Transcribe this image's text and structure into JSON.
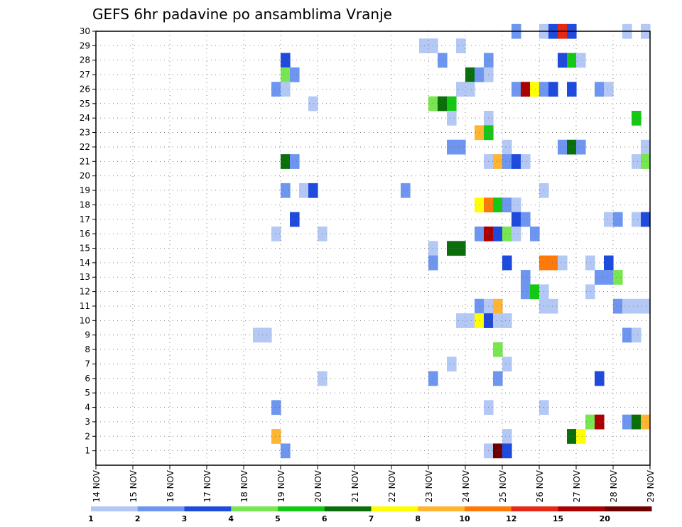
{
  "chart_data": {
    "type": "heatmap",
    "title": "GEFS 6hr padavine po ansamblima Vranje",
    "x_tick_labels": [
      "14 NOV",
      "15 NOV",
      "16 NOV",
      "17 NOV",
      "18 NOV",
      "19 NOV",
      "20 NOV",
      "21 NOV",
      "22 NOV",
      "23 NOV",
      "24 NOV",
      "25 NOV",
      "26 NOV",
      "27 NOV",
      "28 NOV",
      "29 NOV"
    ],
    "x_range_days": [
      14,
      29
    ],
    "y_tick_labels": [
      "1",
      "2",
      "3",
      "4",
      "5",
      "6",
      "7",
      "8",
      "9",
      "10",
      "11",
      "12",
      "13",
      "14",
      "15",
      "16",
      "17",
      "18",
      "19",
      "20",
      "21",
      "22",
      "23",
      "24",
      "25",
      "26",
      "27",
      "28",
      "29",
      "30"
    ],
    "y_range": [
      0,
      30
    ],
    "grid": true,
    "colorbar": {
      "position": "bottom",
      "labels": [
        "1",
        "2",
        "3",
        "4",
        "5",
        "6",
        "7",
        "8",
        "10",
        "12",
        "15",
        "20"
      ],
      "colors": [
        "#b4c8f5",
        "#6e96f0",
        "#1e4bdc",
        "#78e650",
        "#14c814",
        "#0a6e0a",
        "#ffff00",
        "#ffb432",
        "#ff780a",
        "#e62814",
        "#aa0000",
        "#6e0000"
      ]
    },
    "cells": [
      {
        "member": 30,
        "day": 25.25,
        "level": 1
      },
      {
        "member": 30,
        "day": 26.0,
        "level": 0
      },
      {
        "member": 30,
        "day": 26.25,
        "level": 2
      },
      {
        "member": 30,
        "day": 26.5,
        "level": 9
      },
      {
        "member": 30,
        "day": 26.75,
        "level": 2
      },
      {
        "member": 30,
        "day": 28.25,
        "level": 0
      },
      {
        "member": 30,
        "day": 28.75,
        "level": 0
      },
      {
        "member": 29,
        "day": 22.75,
        "level": 0
      },
      {
        "member": 29,
        "day": 23.0,
        "level": 0
      },
      {
        "member": 29,
        "day": 23.75,
        "level": 0
      },
      {
        "member": 28,
        "day": 19.0,
        "level": 2
      },
      {
        "member": 28,
        "day": 23.25,
        "level": 1
      },
      {
        "member": 28,
        "day": 24.5,
        "level": 1
      },
      {
        "member": 28,
        "day": 26.5,
        "level": 2
      },
      {
        "member": 28,
        "day": 26.75,
        "level": 4
      },
      {
        "member": 28,
        "day": 27.0,
        "level": 0
      },
      {
        "member": 27,
        "day": 19.0,
        "level": 3
      },
      {
        "member": 27,
        "day": 19.25,
        "level": 1
      },
      {
        "member": 27,
        "day": 24.0,
        "level": 5
      },
      {
        "member": 27,
        "day": 24.25,
        "level": 1
      },
      {
        "member": 27,
        "day": 24.5,
        "level": 0
      },
      {
        "member": 26,
        "day": 18.75,
        "level": 1
      },
      {
        "member": 26,
        "day": 19.0,
        "level": 0
      },
      {
        "member": 26,
        "day": 23.75,
        "level": 0
      },
      {
        "member": 26,
        "day": 24.0,
        "level": 0
      },
      {
        "member": 26,
        "day": 25.25,
        "level": 1
      },
      {
        "member": 26,
        "day": 25.5,
        "level": 10
      },
      {
        "member": 26,
        "day": 25.75,
        "level": 6
      },
      {
        "member": 26,
        "day": 26.0,
        "level": 1
      },
      {
        "member": 26,
        "day": 26.25,
        "level": 2
      },
      {
        "member": 26,
        "day": 26.75,
        "level": 2
      },
      {
        "member": 26,
        "day": 27.5,
        "level": 1
      },
      {
        "member": 26,
        "day": 27.75,
        "level": 0
      },
      {
        "member": 25,
        "day": 19.75,
        "level": 0
      },
      {
        "member": 25,
        "day": 23.0,
        "level": 3
      },
      {
        "member": 25,
        "day": 23.25,
        "level": 5
      },
      {
        "member": 25,
        "day": 23.5,
        "level": 4
      },
      {
        "member": 24,
        "day": 23.5,
        "level": 0
      },
      {
        "member": 24,
        "day": 24.5,
        "level": 0
      },
      {
        "member": 24,
        "day": 28.5,
        "level": 4
      },
      {
        "member": 23,
        "day": 24.25,
        "level": 7
      },
      {
        "member": 23,
        "day": 24.5,
        "level": 4
      },
      {
        "member": 22,
        "day": 23.5,
        "level": 1
      },
      {
        "member": 22,
        "day": 23.75,
        "level": 1
      },
      {
        "member": 22,
        "day": 25.0,
        "level": 0
      },
      {
        "member": 22,
        "day": 26.5,
        "level": 1
      },
      {
        "member": 22,
        "day": 26.75,
        "level": 5
      },
      {
        "member": 22,
        "day": 27.0,
        "level": 1
      },
      {
        "member": 22,
        "day": 28.75,
        "level": 0
      },
      {
        "member": 21,
        "day": 19.0,
        "level": 5
      },
      {
        "member": 21,
        "day": 19.25,
        "level": 1
      },
      {
        "member": 21,
        "day": 24.5,
        "level": 0
      },
      {
        "member": 21,
        "day": 24.75,
        "level": 7
      },
      {
        "member": 21,
        "day": 25.0,
        "level": 1
      },
      {
        "member": 21,
        "day": 25.25,
        "level": 2
      },
      {
        "member": 21,
        "day": 25.5,
        "level": 0
      },
      {
        "member": 21,
        "day": 28.5,
        "level": 0
      },
      {
        "member": 21,
        "day": 28.75,
        "level": 3
      },
      {
        "member": 19,
        "day": 19.0,
        "level": 1
      },
      {
        "member": 19,
        "day": 19.5,
        "level": 0
      },
      {
        "member": 19,
        "day": 19.75,
        "level": 2
      },
      {
        "member": 19,
        "day": 22.25,
        "level": 1
      },
      {
        "member": 19,
        "day": 26.0,
        "level": 0
      },
      {
        "member": 18,
        "day": 24.25,
        "level": 6
      },
      {
        "member": 18,
        "day": 24.5,
        "level": 8
      },
      {
        "member": 18,
        "day": 24.75,
        "level": 4
      },
      {
        "member": 18,
        "day": 25.0,
        "level": 1
      },
      {
        "member": 18,
        "day": 25.25,
        "level": 0
      },
      {
        "member": 17,
        "day": 19.25,
        "level": 2
      },
      {
        "member": 17,
        "day": 25.25,
        "level": 2
      },
      {
        "member": 17,
        "day": 25.5,
        "level": 1
      },
      {
        "member": 17,
        "day": 27.75,
        "level": 0
      },
      {
        "member": 17,
        "day": 28.0,
        "level": 1
      },
      {
        "member": 17,
        "day": 28.5,
        "level": 0
      },
      {
        "member": 17,
        "day": 28.75,
        "level": 2
      },
      {
        "member": 16,
        "day": 18.75,
        "level": 0
      },
      {
        "member": 16,
        "day": 20.0,
        "level": 0
      },
      {
        "member": 16,
        "day": 24.25,
        "level": 1
      },
      {
        "member": 16,
        "day": 24.5,
        "level": 10
      },
      {
        "member": 16,
        "day": 24.75,
        "level": 2
      },
      {
        "member": 16,
        "day": 25.0,
        "level": 3
      },
      {
        "member": 16,
        "day": 25.25,
        "level": 0
      },
      {
        "member": 16,
        "day": 25.75,
        "level": 1
      },
      {
        "member": 15,
        "day": 23.0,
        "level": 0
      },
      {
        "member": 15,
        "day": 23.5,
        "level": 5
      },
      {
        "member": 15,
        "day": 23.75,
        "level": 5
      },
      {
        "member": 14,
        "day": 23.0,
        "level": 1
      },
      {
        "member": 14,
        "day": 25.0,
        "level": 2
      },
      {
        "member": 14,
        "day": 26.0,
        "level": 8
      },
      {
        "member": 14,
        "day": 26.25,
        "level": 8
      },
      {
        "member": 14,
        "day": 26.5,
        "level": 0
      },
      {
        "member": 14,
        "day": 27.25,
        "level": 0
      },
      {
        "member": 14,
        "day": 27.75,
        "level": 2
      },
      {
        "member": 13,
        "day": 25.5,
        "level": 1
      },
      {
        "member": 13,
        "day": 27.5,
        "level": 1
      },
      {
        "member": 13,
        "day": 27.75,
        "level": 1
      },
      {
        "member": 13,
        "day": 28.0,
        "level": 3
      },
      {
        "member": 12,
        "day": 25.5,
        "level": 1
      },
      {
        "member": 12,
        "day": 25.75,
        "level": 4
      },
      {
        "member": 12,
        "day": 26.0,
        "level": 0
      },
      {
        "member": 12,
        "day": 27.25,
        "level": 0
      },
      {
        "member": 11,
        "day": 24.25,
        "level": 1
      },
      {
        "member": 11,
        "day": 24.5,
        "level": 0
      },
      {
        "member": 11,
        "day": 24.75,
        "level": 7
      },
      {
        "member": 11,
        "day": 26.0,
        "level": 0
      },
      {
        "member": 11,
        "day": 26.25,
        "level": 0
      },
      {
        "member": 11,
        "day": 28.0,
        "level": 1
      },
      {
        "member": 11,
        "day": 28.25,
        "level": 0
      },
      {
        "member": 11,
        "day": 28.5,
        "level": 0
      },
      {
        "member": 11,
        "day": 28.75,
        "level": 0
      },
      {
        "member": 10,
        "day": 23.75,
        "level": 0
      },
      {
        "member": 10,
        "day": 24.0,
        "level": 0
      },
      {
        "member": 10,
        "day": 24.25,
        "level": 6
      },
      {
        "member": 10,
        "day": 24.5,
        "level": 2
      },
      {
        "member": 10,
        "day": 24.75,
        "level": 0
      },
      {
        "member": 10,
        "day": 25.0,
        "level": 0
      },
      {
        "member": 9,
        "day": 18.25,
        "level": 0
      },
      {
        "member": 9,
        "day": 18.5,
        "level": 0
      },
      {
        "member": 9,
        "day": 28.25,
        "level": 1
      },
      {
        "member": 9,
        "day": 28.5,
        "level": 0
      },
      {
        "member": 8,
        "day": 24.75,
        "level": 3
      },
      {
        "member": 7,
        "day": 23.5,
        "level": 0
      },
      {
        "member": 7,
        "day": 25.0,
        "level": 0
      },
      {
        "member": 6,
        "day": 20.0,
        "level": 0
      },
      {
        "member": 6,
        "day": 23.0,
        "level": 1
      },
      {
        "member": 6,
        "day": 24.75,
        "level": 1
      },
      {
        "member": 6,
        "day": 27.5,
        "level": 2
      },
      {
        "member": 4,
        "day": 18.75,
        "level": 1
      },
      {
        "member": 4,
        "day": 24.5,
        "level": 0
      },
      {
        "member": 4,
        "day": 26.0,
        "level": 0
      },
      {
        "member": 3,
        "day": 27.25,
        "level": 3
      },
      {
        "member": 3,
        "day": 27.5,
        "level": 10
      },
      {
        "member": 3,
        "day": 28.25,
        "level": 1
      },
      {
        "member": 3,
        "day": 28.5,
        "level": 5
      },
      {
        "member": 3,
        "day": 28.75,
        "level": 7
      },
      {
        "member": 2,
        "day": 18.75,
        "level": 7
      },
      {
        "member": 2,
        "day": 25.0,
        "level": 0
      },
      {
        "member": 2,
        "day": 26.75,
        "level": 5
      },
      {
        "member": 2,
        "day": 27.0,
        "level": 6
      },
      {
        "member": 1,
        "day": 19.0,
        "level": 1
      },
      {
        "member": 1,
        "day": 24.5,
        "level": 0
      },
      {
        "member": 1,
        "day": 24.75,
        "level": 11
      },
      {
        "member": 1,
        "day": 25.0,
        "level": 2
      }
    ]
  }
}
